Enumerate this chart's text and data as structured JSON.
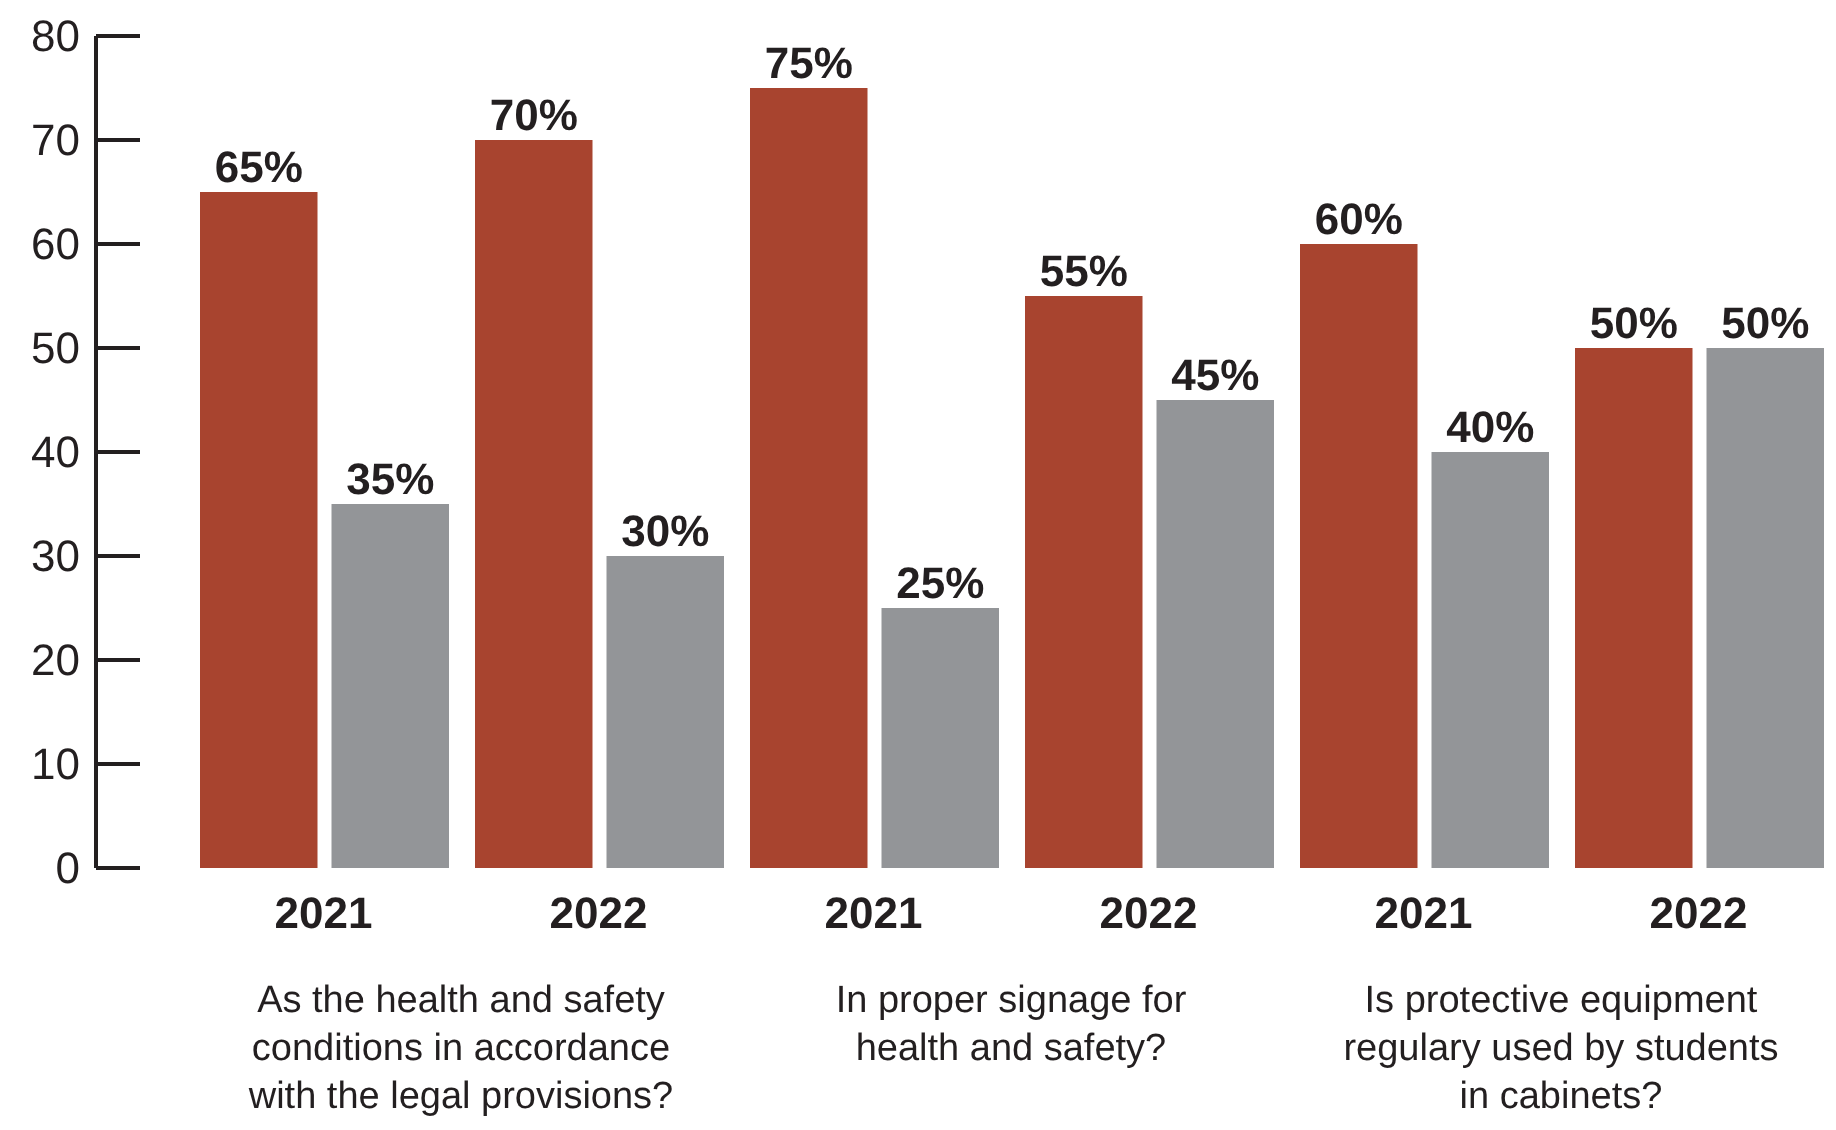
{
  "chart_data": {
    "type": "bar",
    "categories": [
      "2021",
      "2022",
      "2021",
      "2022",
      "2021",
      "2022"
    ],
    "series": [
      {
        "color": "#a8442f",
        "values": [
          65,
          70,
          75,
          55,
          60,
          50
        ],
        "value_labels": [
          "65%",
          "70%",
          "75%",
          "55%",
          "60%",
          "50%"
        ]
      },
      {
        "color": "#939598",
        "values": [
          35,
          30,
          25,
          45,
          40,
          50
        ],
        "value_labels": [
          "35%",
          "30%",
          "25%",
          "45%",
          "40%",
          "50%"
        ]
      }
    ],
    "ylim": [
      0,
      80
    ],
    "yticks": [
      0,
      10,
      20,
      30,
      40,
      50,
      60,
      70,
      80
    ],
    "grid": false,
    "annotations": [
      "As the health and safety\nconditions in accordance\nwith the legal provisions?",
      "In proper signage for\nhealth and safety?",
      "Is protective equipment\nregulary used by students\nin cabinets?"
    ]
  }
}
